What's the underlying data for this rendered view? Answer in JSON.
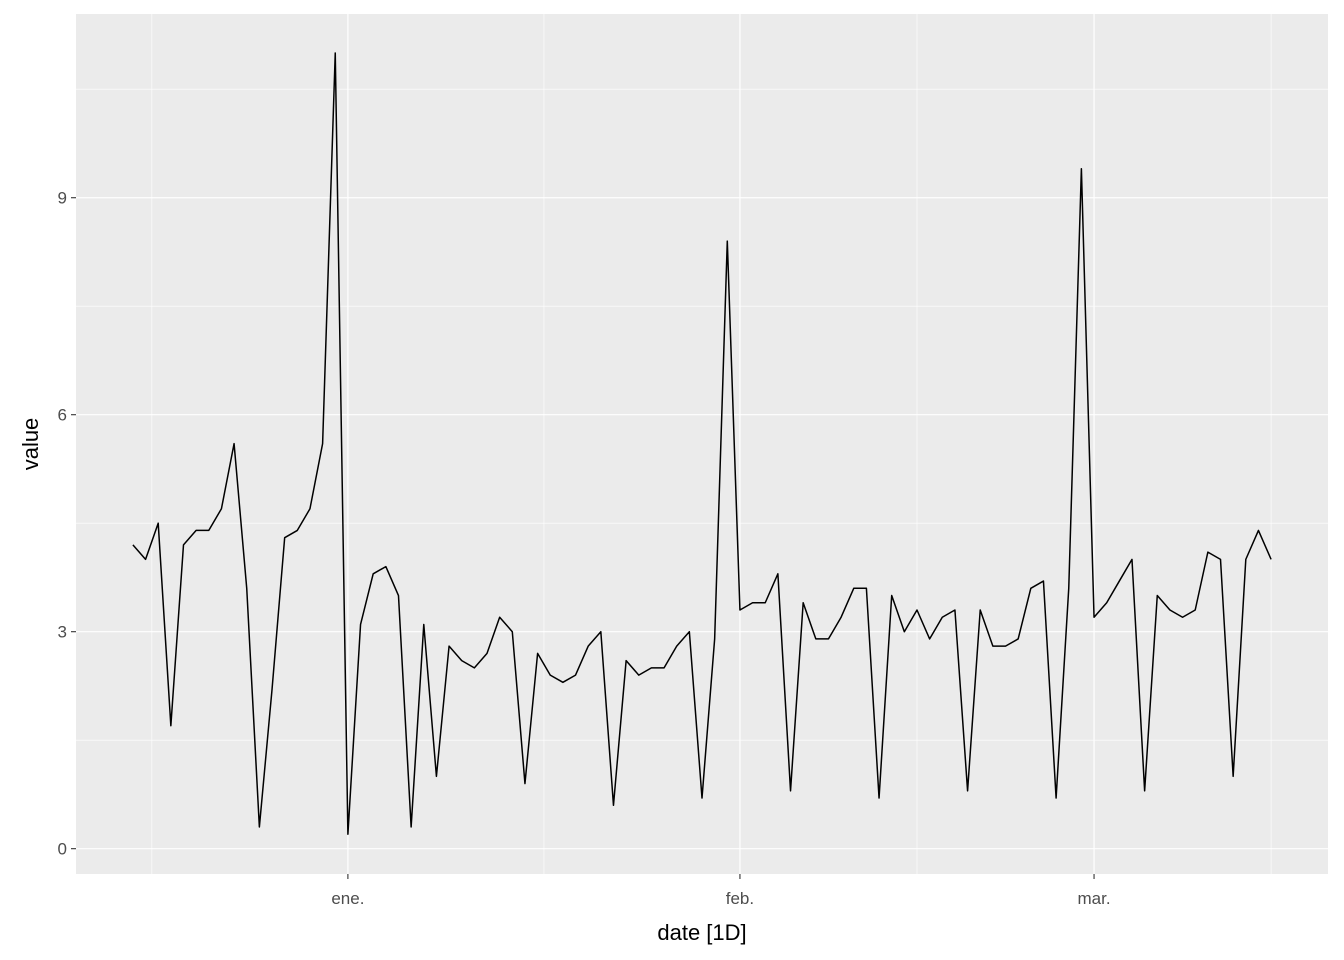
{
  "chart_data": {
    "type": "line",
    "x_label": "date [1D]",
    "y_label": "value",
    "x": [
      -17,
      -16,
      -15,
      -14,
      -13,
      -12,
      -11,
      -10,
      -9,
      -8,
      -7,
      -6,
      -5,
      -4,
      -3,
      -2,
      -1,
      0,
      1,
      2,
      3,
      4,
      5,
      6,
      7,
      8,
      9,
      10,
      11,
      12,
      13,
      14,
      15,
      16,
      17,
      18,
      19,
      20,
      21,
      22,
      23,
      24,
      25,
      26,
      27,
      28,
      29,
      30,
      31,
      32,
      33,
      34,
      35,
      36,
      37,
      38,
      39,
      40,
      41,
      42,
      43,
      44,
      45,
      46,
      47,
      48,
      49,
      50,
      51,
      52,
      53,
      54,
      55,
      56,
      57,
      58,
      59,
      60,
      61,
      62,
      63,
      64,
      65,
      66,
      67,
      68,
      69,
      70,
      71,
      72,
      73
    ],
    "values": [
      4.2,
      4.0,
      4.5,
      1.7,
      4.2,
      4.4,
      4.4,
      4.7,
      5.6,
      3.6,
      0.3,
      2.2,
      4.3,
      4.4,
      4.7,
      5.6,
      11.0,
      0.2,
      3.1,
      3.8,
      3.9,
      3.5,
      0.3,
      3.1,
      1.0,
      2.8,
      2.6,
      2.5,
      2.7,
      3.2,
      3.0,
      0.9,
      2.7,
      2.4,
      2.3,
      2.4,
      2.8,
      3.0,
      0.6,
      2.6,
      2.4,
      2.5,
      2.5,
      2.8,
      3.0,
      0.7,
      2.9,
      8.4,
      3.3,
      3.4,
      3.4,
      3.8,
      0.8,
      3.4,
      2.9,
      2.9,
      3.2,
      3.6,
      3.6,
      0.7,
      3.5,
      3.0,
      3.3,
      2.9,
      3.2,
      3.3,
      0.8,
      3.3,
      2.8,
      2.8,
      2.9,
      3.6,
      3.7,
      0.7,
      3.6,
      9.4,
      3.2,
      3.4,
      3.7,
      4.0,
      0.8,
      3.5,
      3.3,
      3.2,
      3.3,
      4.1,
      4.0,
      1.0,
      4.0,
      4.4,
      4.0
    ],
    "color": "#000000",
    "xlim": [
      -21.5,
      77.5
    ],
    "xticks": [
      {
        "value": 0,
        "label": "ene."
      },
      {
        "value": 31,
        "label": "feb."
      },
      {
        "value": 59,
        "label": "mar."
      }
    ],
    "ylim": [
      -0.35,
      11.54
    ],
    "yticks": [
      0,
      3,
      6,
      9
    ],
    "grid": true
  }
}
